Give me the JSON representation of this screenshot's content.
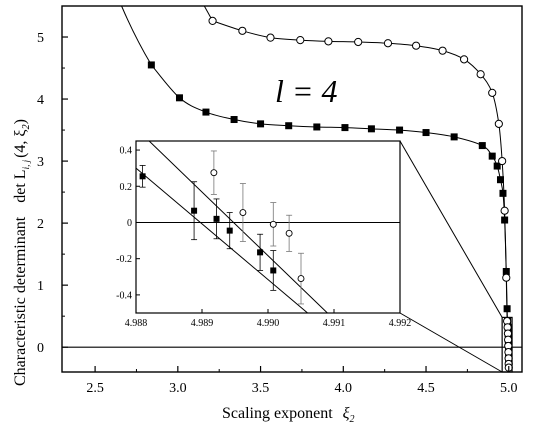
{
  "chart_data": [
    {
      "type": "scatter",
      "panel": "main",
      "xlabel": "Scaling exponent",
      "xlabel_symbol": "ξ",
      "xlabel_symbol_sub": "2",
      "ylabel": "Characteristic determinant",
      "ylabel_symbol": "det L",
      "ylabel_sub": "i, j",
      "ylabel_args": "(4, ξ",
      "ylabel_args_sub": "2",
      "ylabel_close": ")",
      "annotation": "l = 4",
      "xlim": [
        2.3,
        5.08
      ],
      "ylim": [
        -0.4,
        5.5
      ],
      "xticks": [
        2.5,
        3.0,
        3.5,
        4.0,
        4.5,
        5.0
      ],
      "xtick_labels": [
        "2.5",
        "3.0",
        "3.5",
        "4.0",
        "4.5",
        "5.0"
      ],
      "yticks": [
        0,
        1,
        2,
        3,
        4,
        5
      ],
      "ytick_labels": [
        "0",
        "1",
        "2",
        "3",
        "4",
        "5"
      ],
      "reference_line_y": 0,
      "series": [
        {
          "marker": "square-filled",
          "x": [
            2.84,
            3.01,
            3.17,
            3.34,
            3.5,
            3.67,
            3.84,
            4.01,
            4.17,
            4.34,
            4.5,
            4.67,
            4.84,
            4.9,
            4.93,
            4.95,
            4.965,
            4.975,
            4.985,
            4.99,
            4.993,
            4.995,
            4.996,
            4.997,
            4.998,
            4.999,
            4.9995,
            5.0
          ],
          "y": [
            4.55,
            4.02,
            3.79,
            3.67,
            3.6,
            3.57,
            3.55,
            3.54,
            3.52,
            3.5,
            3.46,
            3.39,
            3.25,
            3.08,
            2.92,
            2.7,
            2.48,
            2.05,
            1.22,
            0.62,
            0.42,
            0.32,
            0.22,
            0.12,
            0.02,
            -0.08,
            -0.18,
            -0.28
          ]
        },
        {
          "marker": "circle-open",
          "x": [
            3.21,
            3.39,
            3.56,
            3.74,
            3.91,
            4.09,
            4.27,
            4.44,
            4.6,
            4.73,
            4.83,
            4.9,
            4.94,
            4.96,
            4.975,
            4.985,
            4.99,
            4.993,
            4.995,
            4.996,
            4.997,
            4.998,
            4.999,
            4.9995,
            5.0
          ],
          "y": [
            5.26,
            5.1,
            4.99,
            4.95,
            4.93,
            4.92,
            4.9,
            4.86,
            4.78,
            4.64,
            4.4,
            4.1,
            3.6,
            3.0,
            2.2,
            1.12,
            0.42,
            0.32,
            0.22,
            0.12,
            0.02,
            -0.08,
            -0.18,
            -0.27,
            -0.33
          ]
        }
      ],
      "zoom_box": {
        "x": [
          4.96,
          5.02
        ],
        "y": [
          -0.4,
          0.48
        ]
      }
    },
    {
      "type": "scatter",
      "panel": "inset",
      "xlim": [
        4.988,
        4.992
      ],
      "ylim": [
        -0.5,
        0.45
      ],
      "xticks": [
        4.988,
        4.989,
        4.99,
        4.991,
        4.992
      ],
      "xtick_labels": [
        "4.988",
        "4.989",
        "4.990",
        "4.991",
        "4.992"
      ],
      "yticks": [
        0.4,
        0.2,
        0.0,
        -0.2,
        -0.4
      ],
      "ytick_labels": [
        "0.4",
        "0.2",
        "0",
        "-0.2",
        "-0.4"
      ],
      "reference_line_y": 0,
      "series": [
        {
          "marker": "square-filled",
          "x": [
            4.9881,
            4.98888,
            4.98922,
            4.98942,
            4.98988,
            4.99008
          ],
          "y": [
            0.255,
            0.065,
            0.02,
            -0.045,
            -0.165,
            -0.265
          ],
          "err": [
            0.06,
            0.16,
            0.11,
            0.1,
            0.1,
            0.11
          ],
          "fit_x": [
            4.988,
            4.9906
          ],
          "fit_y": [
            0.3,
            -0.5
          ]
        },
        {
          "marker": "circle-open",
          "x": [
            4.98918,
            4.98962,
            4.99008,
            4.99032,
            4.9905
          ],
          "y": [
            0.275,
            0.055,
            -0.01,
            -0.06,
            -0.31
          ],
          "err": [
            0.12,
            0.16,
            0.12,
            0.1,
            0.14
          ],
          "fit_x": [
            4.988,
            4.9909
          ],
          "fit_y": [
            0.52,
            -0.5
          ]
        }
      ]
    }
  ]
}
